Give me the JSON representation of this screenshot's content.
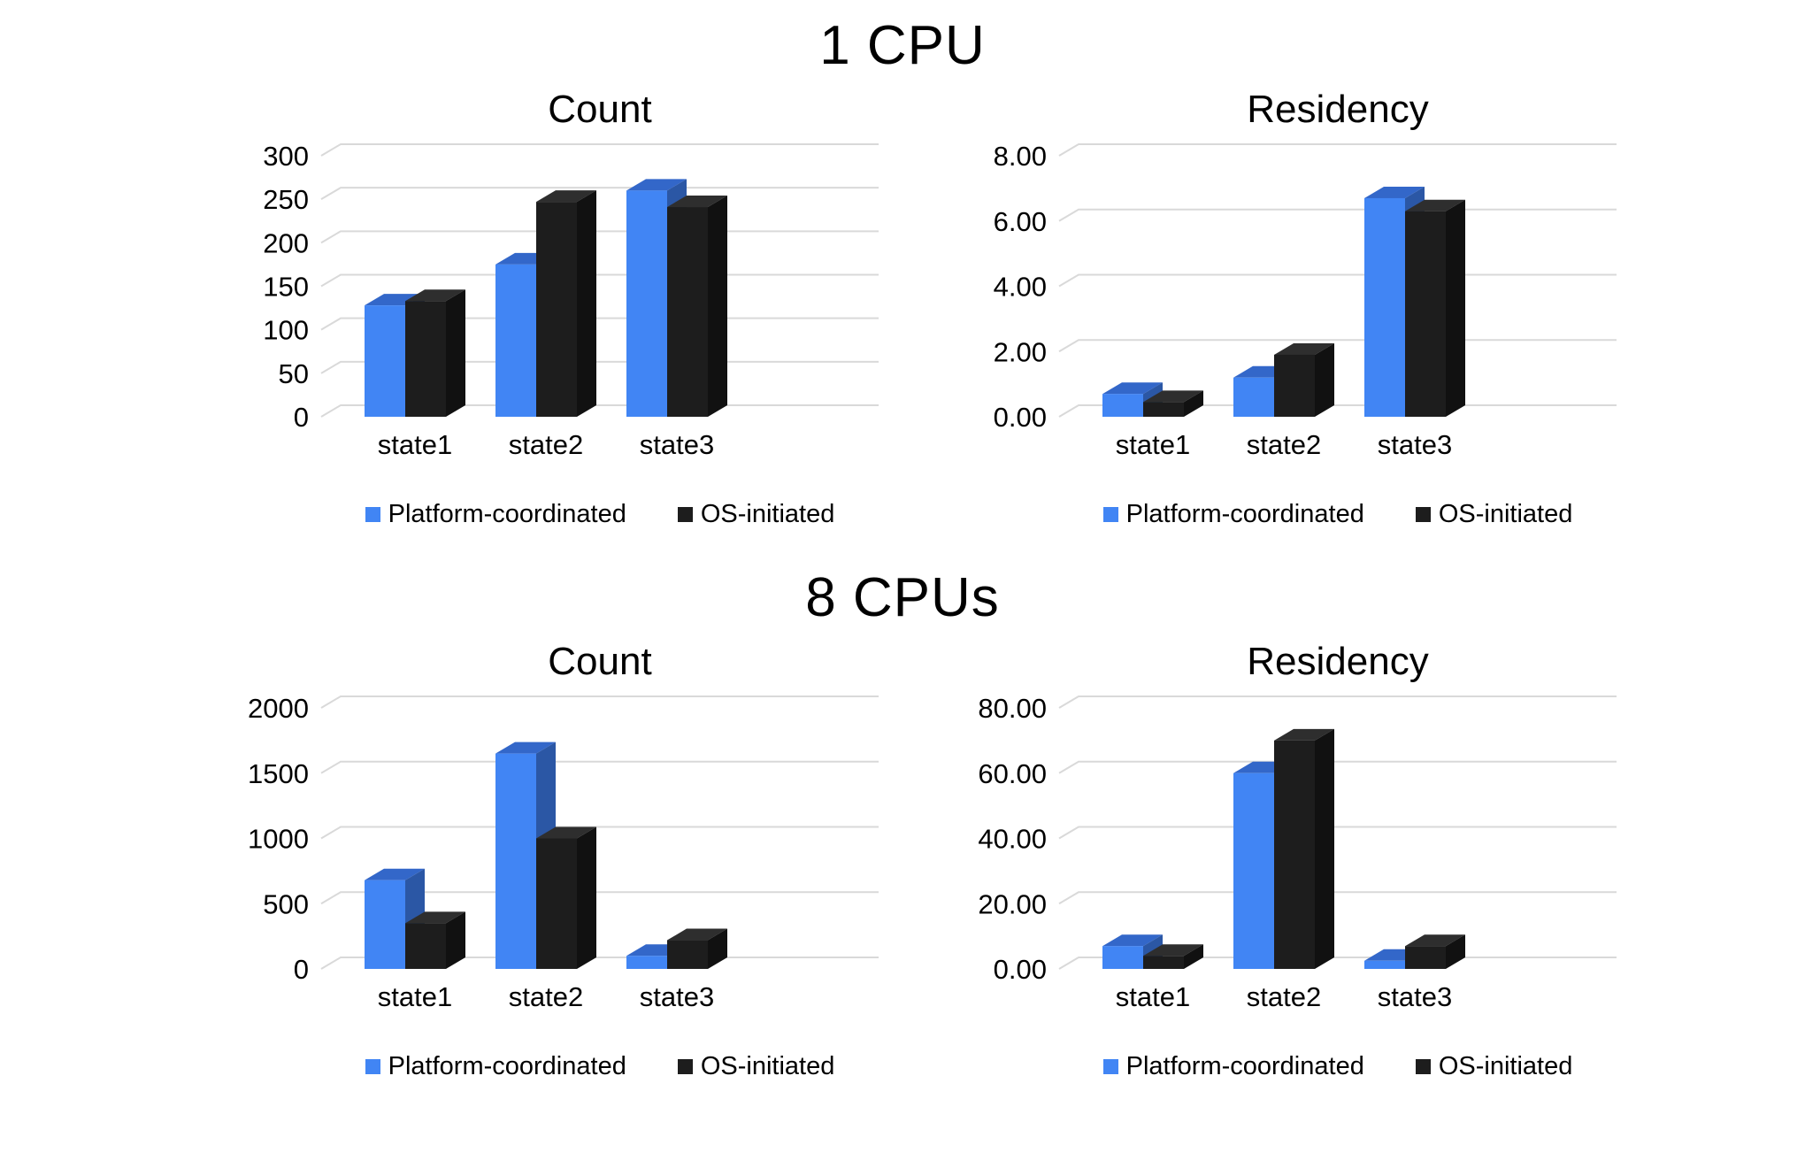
{
  "colors": {
    "platform_front": "#4185F4",
    "platform_top": "#3367C9",
    "platform_side": "#2B57A5",
    "os_front": "#1D1D1D",
    "os_top": "#2E2E2E",
    "os_side": "#111111",
    "gridline": "#D9D9D9",
    "text": "#000000"
  },
  "legend": {
    "platform": "Platform-coordinated",
    "os": "OS-initiated"
  },
  "sections": [
    {
      "title": "1 CPU"
    },
    {
      "title": "8 CPUs"
    }
  ],
  "chart_data": [
    {
      "type": "bar",
      "group": "1 CPU",
      "title": "Count",
      "categories": [
        "state1",
        "state2",
        "state3"
      ],
      "series": [
        {
          "name": "Platform-coordinated",
          "values": [
            128,
            175,
            260
          ]
        },
        {
          "name": "OS-initiated",
          "values": [
            133,
            247,
            241
          ]
        }
      ],
      "ylim": [
        0,
        300
      ],
      "ytick_step": 50,
      "decimals": 0,
      "grid": true,
      "legend_position": "bottom"
    },
    {
      "type": "bar",
      "group": "1 CPU",
      "title": "Residency",
      "categories": [
        "state1",
        "state2",
        "state3"
      ],
      "series": [
        {
          "name": "Platform-coordinated",
          "values": [
            0.7,
            1.2,
            6.7
          ]
        },
        {
          "name": "OS-initiated",
          "values": [
            0.45,
            1.9,
            6.3
          ]
        }
      ],
      "ylim": [
        0,
        8
      ],
      "ytick_step": 2,
      "decimals": 2,
      "grid": true,
      "legend_position": "bottom"
    },
    {
      "type": "bar",
      "group": "8 CPUs",
      "title": "Count",
      "categories": [
        "state1",
        "state2",
        "state3"
      ],
      "series": [
        {
          "name": "Platform-coordinated",
          "values": [
            680,
            1650,
            100
          ]
        },
        {
          "name": "OS-initiated",
          "values": [
            350,
            1000,
            220
          ]
        }
      ],
      "ylim": [
        0,
        2000
      ],
      "ytick_step": 500,
      "decimals": 0,
      "grid": true,
      "legend_position": "bottom"
    },
    {
      "type": "bar",
      "group": "8 CPUs",
      "title": "Residency",
      "categories": [
        "state1",
        "state2",
        "state3"
      ],
      "series": [
        {
          "name": "Platform-coordinated",
          "values": [
            7,
            60,
            2.5
          ]
        },
        {
          "name": "OS-initiated",
          "values": [
            4,
            70,
            7
          ]
        }
      ],
      "ylim": [
        0,
        80
      ],
      "ytick_step": 20,
      "decimals": 2,
      "grid": true,
      "legend_position": "bottom"
    }
  ]
}
